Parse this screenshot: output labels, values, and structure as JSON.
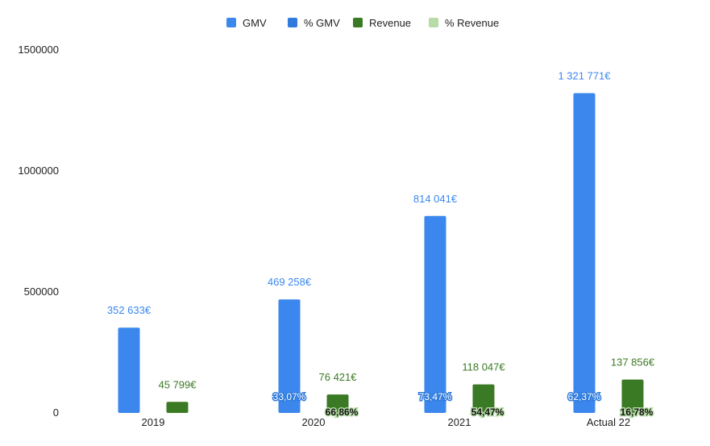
{
  "chart_data": {
    "type": "bar",
    "categories": [
      "2019",
      "2020",
      "2021",
      "Actual 22"
    ],
    "series": [
      {
        "name": "GMV",
        "values": [
          352633,
          469258,
          814041,
          1321771
        ],
        "color": "#3b87ee",
        "labels": [
          "352 633€",
          "469 258€",
          "814 041€",
          "1 321 771€"
        ]
      },
      {
        "name": "% GMV",
        "values": [
          null,
          33.07,
          73.47,
          62.37
        ],
        "color": "#2f7bdc",
        "labels": [
          "",
          "33,07%",
          "73,47%",
          "62,37%"
        ]
      },
      {
        "name": "Revenue",
        "values": [
          45799,
          76421,
          118047,
          137856
        ],
        "color": "#3b7a24",
        "labels": [
          "45 799€",
          "76 421€",
          "118 047€",
          "137 856€"
        ]
      },
      {
        "name": "% Revenue",
        "values": [
          null,
          66.86,
          54.47,
          16.78
        ],
        "color": "#b7dca8",
        "labels": [
          "",
          "66,86%",
          "54,47%",
          "16,78%"
        ]
      }
    ],
    "y_ticks": [
      "0",
      "500000",
      "1000000",
      "1500000"
    ],
    "ylim": [
      0,
      1500000
    ],
    "grid": false,
    "legend_position": "top-center"
  }
}
